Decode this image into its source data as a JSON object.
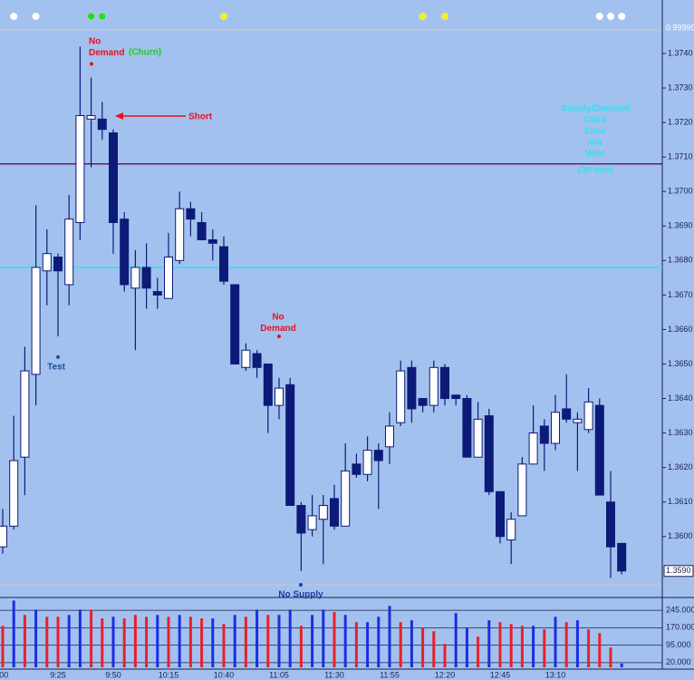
{
  "chart_data": [
    {
      "type": "candlestick",
      "open": [
        1.3597,
        1.3603,
        1.3623,
        1.3647,
        1.3677,
        1.3681,
        1.3673,
        1.3691,
        1.3721,
        1.3721,
        1.3717,
        1.3692,
        1.3672,
        1.3678,
        1.3671,
        1.3669,
        1.368,
        1.3695,
        1.3691,
        1.3686,
        1.3684,
        1.3673,
        1.3649,
        1.3653,
        1.365,
        1.3638,
        1.3644,
        1.3609,
        1.3602,
        1.3605,
        1.3611,
        1.3603,
        1.3621,
        1.3618,
        1.3625,
        1.3626,
        1.3633,
        1.3649,
        1.364,
        1.3638,
        1.3649,
        1.3641,
        1.364,
        1.3623,
        1.3635,
        1.3613,
        1.3599,
        1.3606,
        1.3621,
        1.3632,
        1.3627,
        1.3637,
        1.3633,
        1.3631,
        1.3638,
        1.361,
        1.3598
      ],
      "high": [
        1.3608,
        1.3635,
        1.3655,
        1.3696,
        1.3689,
        1.3682,
        1.3699,
        1.3742,
        1.3733,
        1.3726,
        1.3718,
        1.3694,
        1.3683,
        1.3685,
        1.3675,
        1.3688,
        1.37,
        1.3697,
        1.3694,
        1.3689,
        1.3687,
        1.3673,
        1.3656,
        1.3654,
        1.365,
        1.3646,
        1.3646,
        1.361,
        1.3612,
        1.3612,
        1.3615,
        1.3627,
        1.3624,
        1.3629,
        1.3627,
        1.3636,
        1.3651,
        1.3651,
        1.364,
        1.3651,
        1.365,
        1.3641,
        1.3641,
        1.3639,
        1.3637,
        1.3613,
        1.3607,
        1.3623,
        1.3638,
        1.3634,
        1.3641,
        1.3647,
        1.3636,
        1.3643,
        1.364,
        1.3619,
        1.3598
      ],
      "low": [
        1.3595,
        1.3602,
        1.3612,
        1.3638,
        1.3667,
        1.3658,
        1.3667,
        1.3686,
        1.3707,
        1.3715,
        1.3682,
        1.3671,
        1.3654,
        1.3666,
        1.3666,
        1.3669,
        1.3679,
        1.3687,
        1.3686,
        1.368,
        1.3673,
        1.365,
        1.3648,
        1.3646,
        1.363,
        1.3634,
        1.3609,
        1.359,
        1.36,
        1.3592,
        1.3602,
        1.3603,
        1.3617,
        1.3616,
        1.3608,
        1.3621,
        1.3632,
        1.3633,
        1.3636,
        1.3636,
        1.3638,
        1.3638,
        1.3623,
        1.3623,
        1.3612,
        1.3598,
        1.3592,
        1.3606,
        1.3621,
        1.3619,
        1.3625,
        1.3633,
        1.3619,
        1.363,
        1.3612,
        1.3588,
        1.3589
      ],
      "close": [
        1.3603,
        1.3622,
        1.3648,
        1.3678,
        1.3682,
        1.3677,
        1.3692,
        1.3722,
        1.3722,
        1.3718,
        1.3691,
        1.3673,
        1.3678,
        1.3672,
        1.367,
        1.3681,
        1.3695,
        1.3692,
        1.3686,
        1.3685,
        1.3674,
        1.365,
        1.3654,
        1.3649,
        1.3638,
        1.3643,
        1.3609,
        1.3601,
        1.3606,
        1.3609,
        1.3603,
        1.3619,
        1.3618,
        1.3625,
        1.3622,
        1.3632,
        1.3648,
        1.3637,
        1.3638,
        1.3649,
        1.364,
        1.364,
        1.3623,
        1.3634,
        1.3613,
        1.36,
        1.3605,
        1.3621,
        1.363,
        1.3627,
        1.3636,
        1.3634,
        1.3634,
        1.3639,
        1.3612,
        1.3597,
        1.359
      ],
      "up_color": "#ffffff",
      "down_color": "#0d1b78",
      "ylim": [
        1.3586,
        1.3745
      ],
      "yticks": [
        {
          "value": 1.36,
          "label": "1.3600"
        },
        {
          "value": 1.361,
          "label": "1.3610"
        },
        {
          "value": 1.362,
          "label": "1.3620"
        },
        {
          "value": 1.363,
          "label": "1.3630"
        },
        {
          "value": 1.364,
          "label": "1.3640"
        },
        {
          "value": 1.365,
          "label": "1.3650"
        },
        {
          "value": 1.366,
          "label": "1.3660"
        },
        {
          "value": 1.367,
          "label": "1.3670"
        },
        {
          "value": 1.368,
          "label": "1.3680"
        },
        {
          "value": 1.369,
          "label": "1.3690"
        },
        {
          "value": 1.37,
          "label": "1.3700"
        },
        {
          "value": 1.371,
          "label": "1.3710"
        },
        {
          "value": 1.372,
          "label": "1.3720"
        },
        {
          "value": 1.373,
          "label": "1.3730"
        },
        {
          "value": 1.374,
          "label": "1.3740"
        }
      ],
      "last_price": {
        "value": 1.359,
        "label": "1.3590"
      },
      "levels": [
        {
          "value": 1.3708,
          "color": "#6a1a6e"
        },
        {
          "value": 1.3678,
          "color": "#33e0f0"
        }
      ],
      "signal_panel_label": "0.99995",
      "signal_colors": [
        null,
        "#ffffff",
        null,
        "#ffffff",
        null,
        null,
        null,
        null,
        "#22dd22",
        "#22dd22",
        null,
        null,
        null,
        null,
        null,
        null,
        null,
        null,
        null,
        null,
        "#f0f020",
        null,
        null,
        null,
        null,
        null,
        null,
        null,
        null,
        null,
        null,
        null,
        null,
        null,
        null,
        null,
        null,
        null,
        "#f0f020",
        null,
        "#f0f020",
        null,
        null,
        null,
        null,
        null,
        null,
        null,
        null,
        null,
        null,
        null,
        null,
        null,
        "#ffffff",
        "#ffffff",
        "#ffffff"
      ],
      "annotations": [
        {
          "text": [
            "No",
            "Demand"
          ],
          "color": "#e8101a",
          "dot": 1.3737
        },
        {
          "text": [
            "(Churn)"
          ],
          "color": "#22cc22"
        },
        {
          "text": [
            "Short"
          ],
          "color": "#e8101a"
        },
        {
          "text": [
            "Test"
          ],
          "color": "#1c4fa0",
          "dot": 1.3652
        },
        {
          "text": [
            "No",
            "Demand"
          ],
          "color": "#e8101a",
          "dot": 1.3658
        },
        {
          "text": [
            "No Supply"
          ],
          "color": "#1c3fa0",
          "dot": 1.3586
        },
        {
          "text": [
            "Supply/Demand",
            "Delta",
            "Zone",
            "Via",
            "Wiht"
          ],
          "color": "#33e0f0"
        },
        {
          "text": [
            "(30 min)"
          ],
          "color": "#33e0f0"
        }
      ]
    },
    {
      "type": "bar",
      "categories": [
        ":00",
        null,
        null,
        null,
        null,
        "9:25",
        null,
        null,
        null,
        null,
        "9:50",
        null,
        null,
        null,
        null,
        "10:15",
        null,
        null,
        null,
        null,
        "10:40",
        null,
        null,
        null,
        null,
        "11:05",
        null,
        null,
        null,
        null,
        "11:30",
        null,
        null,
        null,
        null,
        "11:55",
        null,
        null,
        null,
        null,
        "12:20",
        null,
        null,
        null,
        null,
        "12:45",
        null,
        null,
        null,
        null,
        "13:10",
        null,
        null,
        null,
        null,
        null,
        null
      ],
      "values": [
        178,
        287,
        225,
        248,
        217,
        217,
        225,
        248,
        248,
        210,
        217,
        210,
        225,
        217,
        225,
        217,
        225,
        217,
        210,
        210,
        186,
        225,
        217,
        248,
        225,
        225,
        248,
        178,
        225,
        248,
        237,
        225,
        194,
        194,
        217,
        264,
        194,
        202,
        171,
        155,
        101,
        233,
        171,
        132,
        202,
        194,
        186,
        178,
        178,
        163,
        217,
        194,
        202,
        163,
        147,
        85,
        16
      ],
      "colors": [
        "#e8202a",
        "#1a2ee0",
        "#e8202a",
        "#1a2ee0",
        "#e8202a",
        "#e8202a",
        "#1a2ee0",
        "#1a2ee0",
        "#e8202a",
        "#e8202a",
        "#1a2ee0",
        "#e8202a",
        "#e8202a",
        "#e8202a",
        "#1a2ee0",
        "#e8202a",
        "#1a2ee0",
        "#e8202a",
        "#e8202a",
        "#1a2ee0",
        "#e8202a",
        "#1a2ee0",
        "#e8202a",
        "#1a2ee0",
        "#e8202a",
        "#1a2ee0",
        "#1a2ee0",
        "#e8202a",
        "#1a2ee0",
        "#1a2ee0",
        "#e8202a",
        "#1a2ee0",
        "#e8202a",
        "#1a2ee0",
        "#1a2ee0",
        "#1a2ee0",
        "#e8202a",
        "#1a2ee0",
        "#e8202a",
        "#e8202a",
        "#e8202a",
        "#1a2ee0",
        "#1a2ee0",
        "#e8202a",
        "#1a2ee0",
        "#e8202a",
        "#e8202a",
        "#e8202a",
        "#1a2ee0",
        "#e8202a",
        "#1a2ee0",
        "#e8202a",
        "#1a2ee0",
        "#e8202a",
        "#e8202a",
        "#e8202a",
        "#1a2ee0"
      ],
      "ylim": [
        0,
        300
      ],
      "yticks": [
        {
          "value": 20,
          "label": "20.000"
        },
        {
          "value": 95,
          "label": "95.000"
        },
        {
          "value": 170,
          "label": "170.000"
        },
        {
          "value": 245,
          "label": "245.000"
        }
      ],
      "grid": true
    }
  ]
}
